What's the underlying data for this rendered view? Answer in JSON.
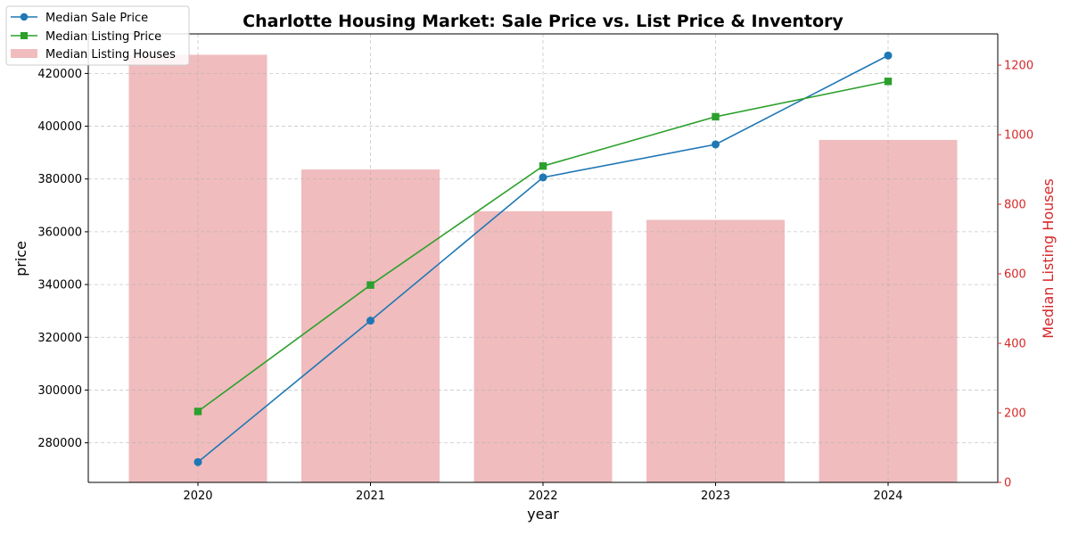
{
  "chart_data": {
    "type": "bar",
    "title": "Charlotte Housing Market: Sale Price vs. List Price & Inventory",
    "xlabel": "year",
    "ylabel": "price",
    "ylabel_right": "Median Listing Houses",
    "categories": [
      "2020",
      "2021",
      "2022",
      "2023",
      "2024"
    ],
    "ylim": [
      265000,
      435000
    ],
    "yticks": [
      "280000",
      "300000",
      "320000",
      "340000",
      "360000",
      "380000",
      "400000",
      "420000"
    ],
    "ylim_right": [
      0,
      1290
    ],
    "yticks_right": [
      "0",
      "200",
      "400",
      "600",
      "800",
      "1000",
      "1200"
    ],
    "grid": true,
    "legend_position": "top-left",
    "series": [
      {
        "name": "Median Sale Price",
        "kind": "line",
        "marker": "circle",
        "axis": "left",
        "color": "#1f77b4",
        "values": [
          272700,
          326300,
          380600,
          393100,
          426800
        ]
      },
      {
        "name": "Median Listing Price",
        "kind": "line",
        "marker": "square",
        "axis": "left",
        "color": "#2ca02c",
        "values": [
          291900,
          339800,
          384900,
          403600,
          417000
        ]
      },
      {
        "name": "Median Listing Houses",
        "kind": "bar",
        "axis": "right",
        "color": "#f0bcbe",
        "values": [
          1230,
          900,
          780,
          755,
          985
        ]
      }
    ],
    "right_axis_color": "#d62728"
  }
}
